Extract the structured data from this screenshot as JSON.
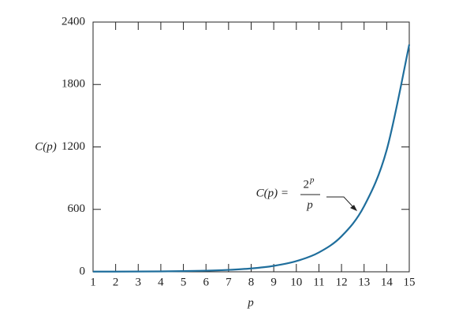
{
  "chart_data": {
    "type": "line",
    "y_axis_label": "C(p)",
    "x_axis_label": "p",
    "annotation": {
      "lhs": "C(p) =",
      "base": "2",
      "exponent": "p",
      "denominator": "p"
    },
    "x": [
      1,
      2,
      3,
      4,
      5,
      6,
      7,
      8,
      9,
      10,
      11,
      12,
      13,
      14,
      15
    ],
    "series": [
      {
        "color": "#1f6e9c",
        "values": [
          2,
          2,
          2.7,
          4,
          6.4,
          10.7,
          18.3,
          32,
          56.9,
          102.4,
          186.2,
          341.3,
          630.2,
          1170.3,
          2184.5
        ]
      }
    ],
    "xlim": [
      1,
      15
    ],
    "xticks": [
      1,
      2,
      3,
      4,
      5,
      6,
      7,
      8,
      9,
      10,
      11,
      12,
      13,
      14,
      15
    ],
    "ylim": [
      0,
      2400
    ],
    "yticks": [
      0,
      600,
      1200,
      1800,
      2400
    ],
    "grid": false
  }
}
